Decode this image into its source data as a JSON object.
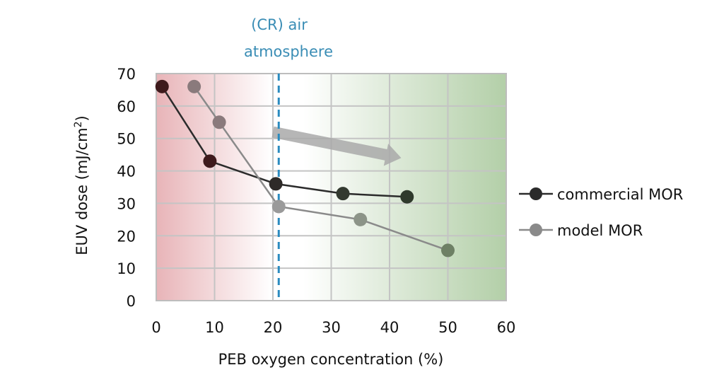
{
  "chart_data": {
    "type": "line",
    "title": "",
    "xlabel": "PEB oxygen concentration (%)",
    "ylabel_main": "EUV dose (mJ/cm",
    "ylabel_sup": "2",
    "ylabel_close": ")",
    "xlim": [
      0,
      60
    ],
    "ylim": [
      0,
      70
    ],
    "xticks": [
      "0",
      "10",
      "20",
      "30",
      "40",
      "50",
      "60"
    ],
    "yticks": [
      "0",
      "10",
      "20",
      "30",
      "40",
      "50",
      "60",
      "70"
    ],
    "grid": true,
    "legend_position": "right",
    "series": [
      {
        "name": "commercial MOR",
        "color": "#2b2b2b",
        "x": [
          1,
          9.2,
          20.5,
          32,
          43
        ],
        "y": [
          66,
          43,
          36,
          33,
          32
        ]
      },
      {
        "name": "model MOR",
        "color": "#8a8a8a",
        "x": [
          6.5,
          10.8,
          21,
          35,
          50
        ],
        "y": [
          66,
          55,
          29,
          25,
          15.5
        ]
      }
    ],
    "reference_line": {
      "x": 21,
      "color": "#2a8bbf",
      "label_line1": "(CR) air",
      "label_line2": "atmosphere"
    },
    "trend_arrow": {
      "from": [
        20,
        52
      ],
      "to": [
        42,
        44
      ],
      "color": "#a9a9a9"
    },
    "background": {
      "left_color": "#e8b4b8",
      "mid_color": "#ffffff",
      "right_color": "#b3cfa8"
    }
  }
}
